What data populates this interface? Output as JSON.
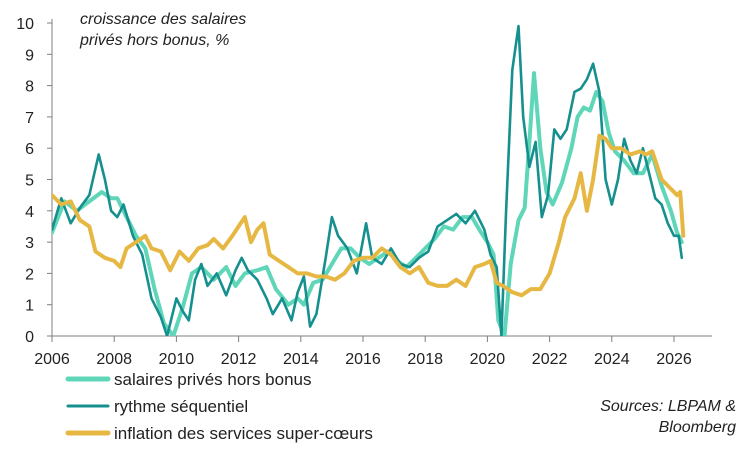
{
  "chart_data": {
    "type": "line",
    "title": "",
    "annotation": [
      "croissance des salaires",
      "privés hors bonus, %"
    ],
    "source": [
      "Sources: LBPAM &",
      "Bloomberg"
    ],
    "xlabel": "",
    "ylabel": "",
    "xlim": [
      2006,
      2026.3
    ],
    "ylim": [
      0,
      10
    ],
    "x_ticks": [
      "2006",
      "2008",
      "2010",
      "2012",
      "2014",
      "2016",
      "2018",
      "2020",
      "2022",
      "2024",
      "2026"
    ],
    "y_ticks": [
      "0",
      "1",
      "2",
      "3",
      "4",
      "5",
      "6",
      "7",
      "8",
      "9",
      "10"
    ],
    "grid": false,
    "legend_position": "bottom-left",
    "series": [
      {
        "name": "salaires privés hors bonus",
        "color": "#5fd6b8",
        "points": [
          [
            2006,
            3.3
          ],
          [
            2006.4,
            4.3
          ],
          [
            2006.8,
            4.0
          ],
          [
            2007.2,
            4.3
          ],
          [
            2007.6,
            4.6
          ],
          [
            2007.9,
            4.4
          ],
          [
            2008.1,
            4.4
          ],
          [
            2008.4,
            3.8
          ],
          [
            2008.7,
            3.2
          ],
          [
            2009.0,
            2.8
          ],
          [
            2009.3,
            1.5
          ],
          [
            2009.6,
            0.4
          ],
          [
            2009.9,
            0.0
          ],
          [
            2010.2,
            0.9
          ],
          [
            2010.5,
            2.0
          ],
          [
            2010.8,
            2.2
          ],
          [
            2011.2,
            1.8
          ],
          [
            2011.6,
            2.2
          ],
          [
            2011.9,
            1.6
          ],
          [
            2012.2,
            2.0
          ],
          [
            2012.6,
            2.1
          ],
          [
            2012.9,
            2.2
          ],
          [
            2013.2,
            1.5
          ],
          [
            2013.6,
            1.0
          ],
          [
            2013.9,
            1.2
          ],
          [
            2014.1,
            1.0
          ],
          [
            2014.4,
            1.7
          ],
          [
            2014.7,
            1.8
          ],
          [
            2015.0,
            2.3
          ],
          [
            2015.3,
            2.8
          ],
          [
            2015.6,
            2.8
          ],
          [
            2015.9,
            2.5
          ],
          [
            2016.2,
            2.3
          ],
          [
            2016.5,
            2.5
          ],
          [
            2016.8,
            2.7
          ],
          [
            2017.1,
            2.4
          ],
          [
            2017.4,
            2.2
          ],
          [
            2017.7,
            2.5
          ],
          [
            2018.0,
            2.8
          ],
          [
            2018.3,
            3.1
          ],
          [
            2018.6,
            3.5
          ],
          [
            2018.9,
            3.4
          ],
          [
            2019.2,
            3.8
          ],
          [
            2019.5,
            3.8
          ],
          [
            2019.8,
            3.3
          ],
          [
            2020.0,
            3.0
          ],
          [
            2020.2,
            2.6
          ],
          [
            2020.35,
            0.5
          ],
          [
            2020.55,
            0.0
          ],
          [
            2020.75,
            2.3
          ],
          [
            2021.0,
            3.7
          ],
          [
            2021.2,
            4.1
          ],
          [
            2021.35,
            6.2
          ],
          [
            2021.5,
            8.4
          ],
          [
            2021.7,
            6.0
          ],
          [
            2021.9,
            4.6
          ],
          [
            2022.1,
            4.2
          ],
          [
            2022.4,
            4.9
          ],
          [
            2022.7,
            6.0
          ],
          [
            2022.9,
            7.0
          ],
          [
            2023.1,
            7.3
          ],
          [
            2023.3,
            7.2
          ],
          [
            2023.5,
            7.8
          ],
          [
            2023.7,
            7.5
          ],
          [
            2023.9,
            6.5
          ],
          [
            2024.1,
            5.9
          ],
          [
            2024.4,
            5.6
          ],
          [
            2024.7,
            5.2
          ],
          [
            2025.0,
            5.2
          ],
          [
            2025.3,
            5.8
          ],
          [
            2025.6,
            4.8
          ],
          [
            2025.9,
            4.0
          ],
          [
            2026.1,
            3.3
          ],
          [
            2026.25,
            3.0
          ]
        ]
      },
      {
        "name": "rythme séquentiel",
        "color": "#168f8f",
        "points": [
          [
            2006,
            3.4
          ],
          [
            2006.3,
            4.4
          ],
          [
            2006.6,
            3.6
          ],
          [
            2006.9,
            4.1
          ],
          [
            2007.2,
            4.5
          ],
          [
            2007.5,
            5.8
          ],
          [
            2007.7,
            5.0
          ],
          [
            2007.9,
            4.0
          ],
          [
            2008.1,
            3.8
          ],
          [
            2008.3,
            4.2
          ],
          [
            2008.6,
            3.2
          ],
          [
            2008.9,
            2.6
          ],
          [
            2009.2,
            1.2
          ],
          [
            2009.5,
            0.6
          ],
          [
            2009.7,
            0.0
          ],
          [
            2010.0,
            1.2
          ],
          [
            2010.2,
            0.8
          ],
          [
            2010.4,
            0.5
          ],
          [
            2010.6,
            1.8
          ],
          [
            2010.8,
            2.3
          ],
          [
            2011.0,
            1.6
          ],
          [
            2011.3,
            2.0
          ],
          [
            2011.6,
            1.3
          ],
          [
            2011.9,
            2.1
          ],
          [
            2012.1,
            2.5
          ],
          [
            2012.3,
            2.1
          ],
          [
            2012.6,
            1.8
          ],
          [
            2012.9,
            1.2
          ],
          [
            2013.1,
            0.7
          ],
          [
            2013.4,
            1.2
          ],
          [
            2013.7,
            0.5
          ],
          [
            2013.9,
            1.4
          ],
          [
            2014.1,
            1.9
          ],
          [
            2014.3,
            0.3
          ],
          [
            2014.5,
            0.7
          ],
          [
            2014.8,
            2.5
          ],
          [
            2015.0,
            3.8
          ],
          [
            2015.2,
            3.2
          ],
          [
            2015.5,
            2.8
          ],
          [
            2015.8,
            2.0
          ],
          [
            2016.1,
            3.6
          ],
          [
            2016.3,
            2.5
          ],
          [
            2016.6,
            2.3
          ],
          [
            2016.9,
            2.8
          ],
          [
            2017.2,
            2.3
          ],
          [
            2017.5,
            2.2
          ],
          [
            2017.8,
            2.5
          ],
          [
            2018.1,
            2.7
          ],
          [
            2018.4,
            3.5
          ],
          [
            2018.7,
            3.7
          ],
          [
            2019.0,
            3.9
          ],
          [
            2019.3,
            3.6
          ],
          [
            2019.6,
            4.0
          ],
          [
            2019.9,
            3.4
          ],
          [
            2020.1,
            2.6
          ],
          [
            2020.3,
            2.2
          ],
          [
            2020.45,
            0.0
          ],
          [
            2020.6,
            4.0
          ],
          [
            2020.8,
            8.5
          ],
          [
            2021.0,
            9.9
          ],
          [
            2021.15,
            7.0
          ],
          [
            2021.35,
            5.4
          ],
          [
            2021.55,
            6.2
          ],
          [
            2021.75,
            3.8
          ],
          [
            2021.95,
            4.5
          ],
          [
            2022.15,
            6.6
          ],
          [
            2022.35,
            6.3
          ],
          [
            2022.55,
            6.6
          ],
          [
            2022.8,
            7.8
          ],
          [
            2023.0,
            7.9
          ],
          [
            2023.2,
            8.2
          ],
          [
            2023.4,
            8.7
          ],
          [
            2023.6,
            7.8
          ],
          [
            2023.8,
            5.0
          ],
          [
            2024.0,
            4.2
          ],
          [
            2024.2,
            5.0
          ],
          [
            2024.4,
            6.3
          ],
          [
            2024.6,
            5.6
          ],
          [
            2024.8,
            5.2
          ],
          [
            2025.0,
            6.0
          ],
          [
            2025.2,
            5.2
          ],
          [
            2025.4,
            4.4
          ],
          [
            2025.6,
            4.2
          ],
          [
            2025.8,
            3.6
          ],
          [
            2026.0,
            3.2
          ],
          [
            2026.15,
            3.2
          ],
          [
            2026.25,
            2.5
          ]
        ]
      },
      {
        "name": "inflation des services super-cœurs",
        "color": "#e6b843",
        "points": [
          [
            2006,
            4.5
          ],
          [
            2006.3,
            4.2
          ],
          [
            2006.6,
            4.3
          ],
          [
            2006.9,
            3.7
          ],
          [
            2007.2,
            3.5
          ],
          [
            2007.4,
            2.7
          ],
          [
            2007.7,
            2.5
          ],
          [
            2008.0,
            2.4
          ],
          [
            2008.2,
            2.2
          ],
          [
            2008.4,
            2.8
          ],
          [
            2008.7,
            3.0
          ],
          [
            2009.0,
            3.2
          ],
          [
            2009.2,
            2.8
          ],
          [
            2009.5,
            2.7
          ],
          [
            2009.8,
            2.1
          ],
          [
            2010.1,
            2.7
          ],
          [
            2010.4,
            2.4
          ],
          [
            2010.7,
            2.8
          ],
          [
            2011.0,
            2.9
          ],
          [
            2011.2,
            3.1
          ],
          [
            2011.5,
            2.8
          ],
          [
            2011.8,
            3.2
          ],
          [
            2012.0,
            3.5
          ],
          [
            2012.2,
            3.8
          ],
          [
            2012.4,
            3.0
          ],
          [
            2012.6,
            3.4
          ],
          [
            2012.8,
            3.6
          ],
          [
            2013.0,
            2.6
          ],
          [
            2013.3,
            2.4
          ],
          [
            2013.6,
            2.2
          ],
          [
            2013.9,
            2.0
          ],
          [
            2014.2,
            2.0
          ],
          [
            2014.5,
            1.9
          ],
          [
            2014.8,
            1.9
          ],
          [
            2015.1,
            1.8
          ],
          [
            2015.4,
            2.0
          ],
          [
            2015.7,
            2.4
          ],
          [
            2016.0,
            2.5
          ],
          [
            2016.3,
            2.5
          ],
          [
            2016.6,
            2.8
          ],
          [
            2016.9,
            2.6
          ],
          [
            2017.2,
            2.2
          ],
          [
            2017.5,
            2.0
          ],
          [
            2017.8,
            2.2
          ],
          [
            2018.1,
            1.7
          ],
          [
            2018.4,
            1.6
          ],
          [
            2018.7,
            1.6
          ],
          [
            2019.0,
            1.8
          ],
          [
            2019.3,
            1.6
          ],
          [
            2019.6,
            2.2
          ],
          [
            2019.9,
            2.3
          ],
          [
            2020.1,
            2.4
          ],
          [
            2020.3,
            1.7
          ],
          [
            2020.5,
            1.6
          ],
          [
            2020.8,
            1.4
          ],
          [
            2021.1,
            1.3
          ],
          [
            2021.4,
            1.5
          ],
          [
            2021.7,
            1.5
          ],
          [
            2022.0,
            2.0
          ],
          [
            2022.3,
            3.0
          ],
          [
            2022.5,
            3.8
          ],
          [
            2022.8,
            4.4
          ],
          [
            2023.0,
            5.2
          ],
          [
            2023.2,
            4.0
          ],
          [
            2023.4,
            5.0
          ],
          [
            2023.6,
            6.4
          ],
          [
            2023.8,
            6.3
          ],
          [
            2024.0,
            6.0
          ],
          [
            2024.3,
            6.0
          ],
          [
            2024.6,
            5.8
          ],
          [
            2024.9,
            5.9
          ],
          [
            2025.1,
            5.8
          ],
          [
            2025.3,
            5.9
          ],
          [
            2025.6,
            5.0
          ],
          [
            2025.9,
            4.7
          ],
          [
            2026.1,
            4.5
          ],
          [
            2026.2,
            4.6
          ],
          [
            2026.3,
            3.2
          ]
        ]
      }
    ]
  }
}
